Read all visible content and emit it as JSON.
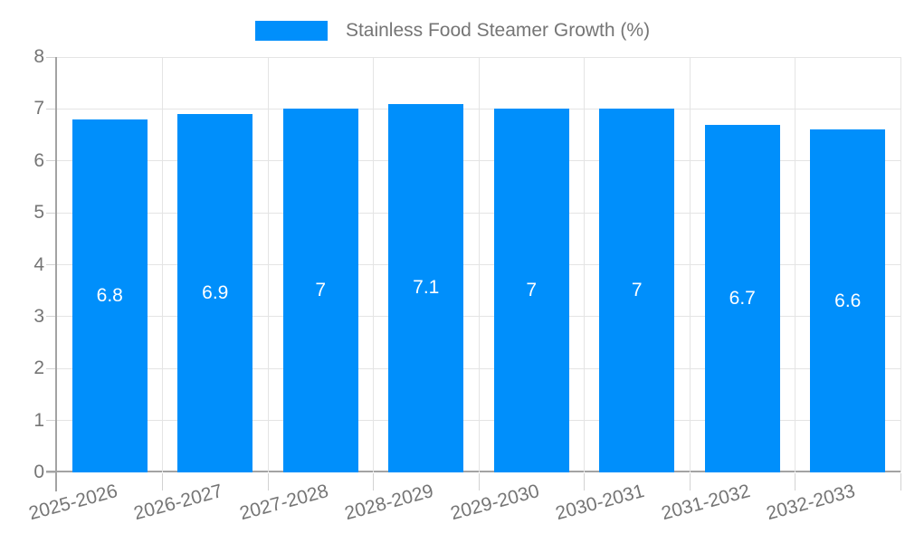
{
  "chart_data": {
    "type": "bar",
    "legend_label": "Stainless Food Steamer Growth (%)",
    "legend_position": "top",
    "categories": [
      "2025-2026",
      "2026-2027",
      "2027-2028",
      "2028-2029",
      "2029-2030",
      "2030-2031",
      "2031-2032",
      "2032-2033"
    ],
    "series": [
      {
        "name": "Stainless Food Steamer Growth (%)",
        "values": [
          6.8,
          6.9,
          7,
          7.1,
          7,
          7,
          6.7,
          6.6
        ]
      }
    ],
    "value_labels": [
      "6.8",
      "6.9",
      "7",
      "7.1",
      "7",
      "7",
      "6.7",
      "6.6"
    ],
    "xlabel": "",
    "ylabel": "",
    "ylim": [
      0,
      8
    ],
    "yticks": [
      "0",
      "1",
      "2",
      "3",
      "4",
      "5",
      "6",
      "7",
      "8"
    ],
    "grid": true,
    "colors": {
      "bar": "#008FFB",
      "value_label": "#FFFFFF",
      "axis_text": "#757575",
      "grid_line": "#E4E4E4",
      "axis_line": "#A3A3A3",
      "tick_line": "#D2D2D2",
      "background": "#FFFFFF"
    }
  }
}
